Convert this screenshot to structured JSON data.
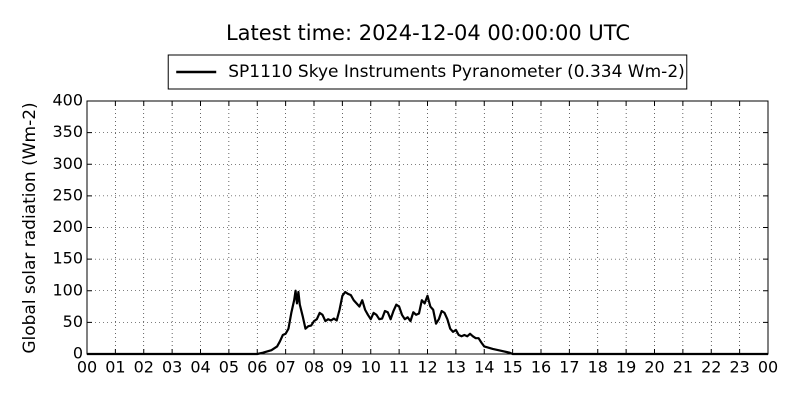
{
  "chart_data": {
    "type": "line",
    "title": "Latest time: 2024-12-04 00:00:00 UTC",
    "y_label": "Global solar radiation (Wm-2)",
    "legend": "upper center",
    "grid": true,
    "x": [
      0,
      6.0,
      6.2,
      6.5,
      6.7,
      6.8,
      6.9,
      7.0,
      7.1,
      7.2,
      7.3,
      7.35,
      7.4,
      7.45,
      7.5,
      7.6,
      7.7,
      7.8,
      7.9,
      8.0,
      8.1,
      8.2,
      8.3,
      8.4,
      8.5,
      8.6,
      8.7,
      8.8,
      8.9,
      9.0,
      9.1,
      9.2,
      9.3,
      9.4,
      9.5,
      9.6,
      9.7,
      9.8,
      9.9,
      10.0,
      10.1,
      10.2,
      10.3,
      10.4,
      10.5,
      10.6,
      10.7,
      10.8,
      10.9,
      11.0,
      11.1,
      11.2,
      11.3,
      11.4,
      11.5,
      11.6,
      11.7,
      11.8,
      11.9,
      12.0,
      12.1,
      12.2,
      12.3,
      12.4,
      12.5,
      12.6,
      12.7,
      12.8,
      12.9,
      13.0,
      13.1,
      13.2,
      13.3,
      13.4,
      13.5,
      13.6,
      13.7,
      13.8,
      13.9,
      14.0,
      14.3,
      14.6,
      14.9,
      15.0,
      24.0
    ],
    "series": [
      {
        "name": "SP1110 Skye Instruments Pyranometer (0.334 Wm-2)",
        "color": "#000000",
        "values": [
          0,
          0,
          2,
          6,
          12,
          20,
          30,
          32,
          40,
          65,
          85,
          100,
          80,
          98,
          78,
          60,
          40,
          44,
          45,
          52,
          55,
          65,
          62,
          52,
          55,
          53,
          56,
          53,
          70,
          92,
          98,
          95,
          93,
          85,
          80,
          75,
          85,
          70,
          62,
          55,
          65,
          62,
          55,
          56,
          68,
          66,
          55,
          68,
          78,
          75,
          62,
          55,
          58,
          52,
          66,
          62,
          64,
          85,
          80,
          92,
          75,
          70,
          48,
          55,
          68,
          65,
          55,
          40,
          35,
          38,
          30,
          28,
          30,
          28,
          32,
          28,
          25,
          25,
          18,
          12,
          8,
          5,
          2,
          0,
          0
        ]
      }
    ],
    "xlim": [
      0,
      24
    ],
    "xticks": [
      {
        "value": 0,
        "label": "00"
      },
      {
        "value": 1,
        "label": "01"
      },
      {
        "value": 2,
        "label": "02"
      },
      {
        "value": 3,
        "label": "03"
      },
      {
        "value": 4,
        "label": "04"
      },
      {
        "value": 5,
        "label": "05"
      },
      {
        "value": 6,
        "label": "06"
      },
      {
        "value": 7,
        "label": "07"
      },
      {
        "value": 8,
        "label": "08"
      },
      {
        "value": 9,
        "label": "09"
      },
      {
        "value": 10,
        "label": "10"
      },
      {
        "value": 11,
        "label": "11"
      },
      {
        "value": 12,
        "label": "12"
      },
      {
        "value": 13,
        "label": "13"
      },
      {
        "value": 14,
        "label": "14"
      },
      {
        "value": 15,
        "label": "15"
      },
      {
        "value": 16,
        "label": "16"
      },
      {
        "value": 17,
        "label": "17"
      },
      {
        "value": 18,
        "label": "18"
      },
      {
        "value": 19,
        "label": "19"
      },
      {
        "value": 20,
        "label": "20"
      },
      {
        "value": 21,
        "label": "21"
      },
      {
        "value": 22,
        "label": "22"
      },
      {
        "value": 23,
        "label": "23"
      },
      {
        "value": 24,
        "label": "00"
      }
    ],
    "ylim": [
      0,
      400
    ],
    "yticks": [
      0,
      50,
      100,
      150,
      200,
      250,
      300,
      350,
      400
    ]
  }
}
